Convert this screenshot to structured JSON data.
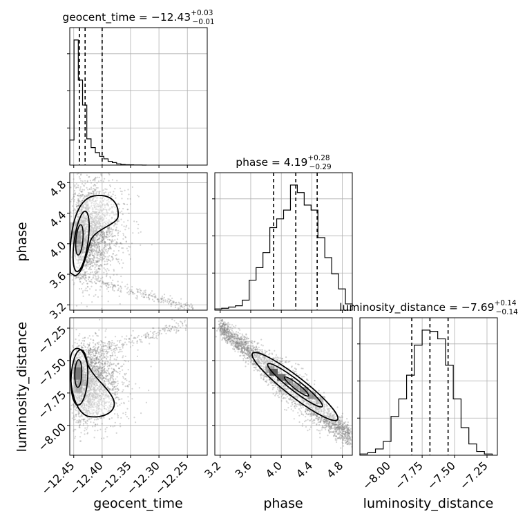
{
  "chart_data": {
    "type": "corner",
    "parameters": [
      "geocent_time",
      "phase",
      "luminosity_distance"
    ],
    "titles": {
      "geocent_time": {
        "prefix": "geocent_time = ",
        "median": "−12.43",
        "plus": "+0.03",
        "minus": "−0.01"
      },
      "phase": {
        "prefix": "phase = ",
        "median": "4.19",
        "plus": "+0.28",
        "minus": "−0.29"
      },
      "luminosity_distance": {
        "prefix": "luminosity_distance = ",
        "median": "−7.69",
        "plus": "+0.14",
        "minus": "−0.14"
      }
    },
    "axis_labels": {
      "x": [
        "geocent_time",
        "phase",
        "luminosity_distance"
      ],
      "y": [
        "phase",
        "luminosity_distance"
      ]
    },
    "ranges": {
      "geocent_time": [
        -12.457,
        -12.215
      ],
      "phase": [
        3.13,
        4.93
      ],
      "luminosity_distance": [
        -8.23,
        -7.17
      ]
    },
    "ticks": {
      "geocent_time": [
        {
          "v": -12.45,
          "label": "−12.45"
        },
        {
          "v": -12.4,
          "label": "−12.40"
        },
        {
          "v": -12.35,
          "label": "−12.35"
        },
        {
          "v": -12.3,
          "label": "−12.30"
        },
        {
          "v": -12.25,
          "label": "−12.25"
        }
      ],
      "phase": [
        {
          "v": 3.2,
          "label": "3.2"
        },
        {
          "v": 3.6,
          "label": "3.6"
        },
        {
          "v": 4.0,
          "label": "4.0"
        },
        {
          "v": 4.4,
          "label": "4.4"
        },
        {
          "v": 4.8,
          "label": "4.8"
        }
      ],
      "luminosity_distance": [
        {
          "v": -8.0,
          "label": "−8.00"
        },
        {
          "v": -7.75,
          "label": "−7.75"
        },
        {
          "v": -7.5,
          "label": "−7.50"
        },
        {
          "v": -7.25,
          "label": "−7.25"
        }
      ]
    },
    "quantiles": {
      "geocent_time": [
        -12.44,
        -12.43,
        -12.4
      ],
      "phase": [
        3.9,
        4.19,
        4.47
      ],
      "luminosity_distance": [
        -7.83,
        -7.69,
        -7.55
      ]
    },
    "histograms": {
      "geocent_time": {
        "edges": [
          -12.457,
          -12.4495,
          -12.442,
          -12.4345,
          -12.427,
          -12.4195,
          -12.412,
          -12.4045,
          -12.397,
          -12.3895,
          -12.382,
          -12.3745,
          -12.367,
          -12.3595,
          -12.352,
          -12.3445,
          -12.337,
          -12.3295,
          -12.322
        ],
        "counts": [
          0.2,
          1.0,
          0.68,
          0.48,
          0.21,
          0.14,
          0.1,
          0.07,
          0.05,
          0.03,
          0.02,
          0.01,
          0.005,
          0.003,
          0.002,
          0.001,
          0.0005,
          0.0002
        ]
      },
      "phase": {
        "edges": [
          3.13,
          3.22,
          3.31,
          3.4,
          3.49,
          3.58,
          3.67,
          3.76,
          3.85,
          3.94,
          4.03,
          4.12,
          4.21,
          4.3,
          4.39,
          4.48,
          4.57,
          4.66,
          4.75,
          4.84,
          4.93
        ],
        "counts": [
          0.01,
          0.015,
          0.025,
          0.035,
          0.08,
          0.24,
          0.34,
          0.46,
          0.66,
          0.73,
          0.8,
          1.0,
          0.94,
          0.84,
          0.8,
          0.58,
          0.42,
          0.29,
          0.17,
          0.05
        ]
      },
      "luminosity_distance": {
        "edges": [
          -8.23,
          -8.17,
          -8.11,
          -8.05,
          -7.99,
          -7.93,
          -7.87,
          -7.81,
          -7.75,
          -7.69,
          -7.63,
          -7.57,
          -7.51,
          -7.45,
          -7.39,
          -7.33,
          -7.27,
          -7.21
        ],
        "counts": [
          0.01,
          0.02,
          0.05,
          0.11,
          0.31,
          0.45,
          0.64,
          0.88,
          1.0,
          0.99,
          0.93,
          0.72,
          0.45,
          0.22,
          0.09,
          0.03,
          0.01
        ]
      }
    },
    "grid": true,
    "colors": {
      "points": "#808080",
      "contour": "#000000",
      "density": "#000000",
      "grid": "#b0b0b0"
    }
  }
}
